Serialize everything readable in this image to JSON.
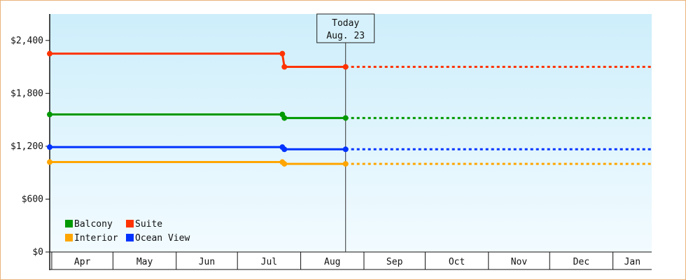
{
  "chart_data": {
    "type": "line",
    "title": "",
    "xlabel": "",
    "ylabel": "",
    "x_months": [
      "Apr",
      "May",
      "Jun",
      "Jul",
      "Aug",
      "Sep",
      "Oct",
      "Nov",
      "Dec",
      "Jan"
    ],
    "xlim": [
      "2023-03-31",
      "2024-01-20"
    ],
    "ylim": [
      0,
      2700
    ],
    "yticks": [
      0,
      600,
      1200,
      1800,
      2400
    ],
    "ytick_labels": [
      "$0",
      "$600",
      "$1,200",
      "$1,800",
      "$2,400"
    ],
    "grid": false,
    "legend_position": "bottom-left",
    "today": {
      "label_line1": "Today",
      "label_line2": "Aug. 23",
      "date": "2023-08-23"
    },
    "series": [
      {
        "name": "Suite",
        "color": "#ff3300",
        "points": [
          [
            "2023-03-31",
            2250
          ],
          [
            "2023-07-23",
            2250
          ],
          [
            "2023-07-24",
            2100
          ],
          [
            "2023-08-23",
            2100
          ]
        ],
        "projected_value": 2100
      },
      {
        "name": "Balcony",
        "color": "#009900",
        "points": [
          [
            "2023-03-31",
            1560
          ],
          [
            "2023-07-23",
            1560
          ],
          [
            "2023-07-24",
            1520
          ],
          [
            "2023-08-23",
            1520
          ]
        ],
        "projected_value": 1520
      },
      {
        "name": "Ocean View",
        "color": "#0033ff",
        "points": [
          [
            "2023-03-31",
            1190
          ],
          [
            "2023-07-23",
            1190
          ],
          [
            "2023-07-24",
            1165
          ],
          [
            "2023-08-23",
            1165
          ]
        ],
        "projected_value": 1165
      },
      {
        "name": "Interior",
        "color": "#ffa500",
        "points": [
          [
            "2023-03-31",
            1020
          ],
          [
            "2023-07-23",
            1020
          ],
          [
            "2023-07-24",
            1000
          ],
          [
            "2023-08-23",
            1000
          ]
        ],
        "projected_value": 1000
      }
    ],
    "legend": [
      "Balcony",
      "Suite",
      "Interior",
      "Ocean View"
    ]
  }
}
